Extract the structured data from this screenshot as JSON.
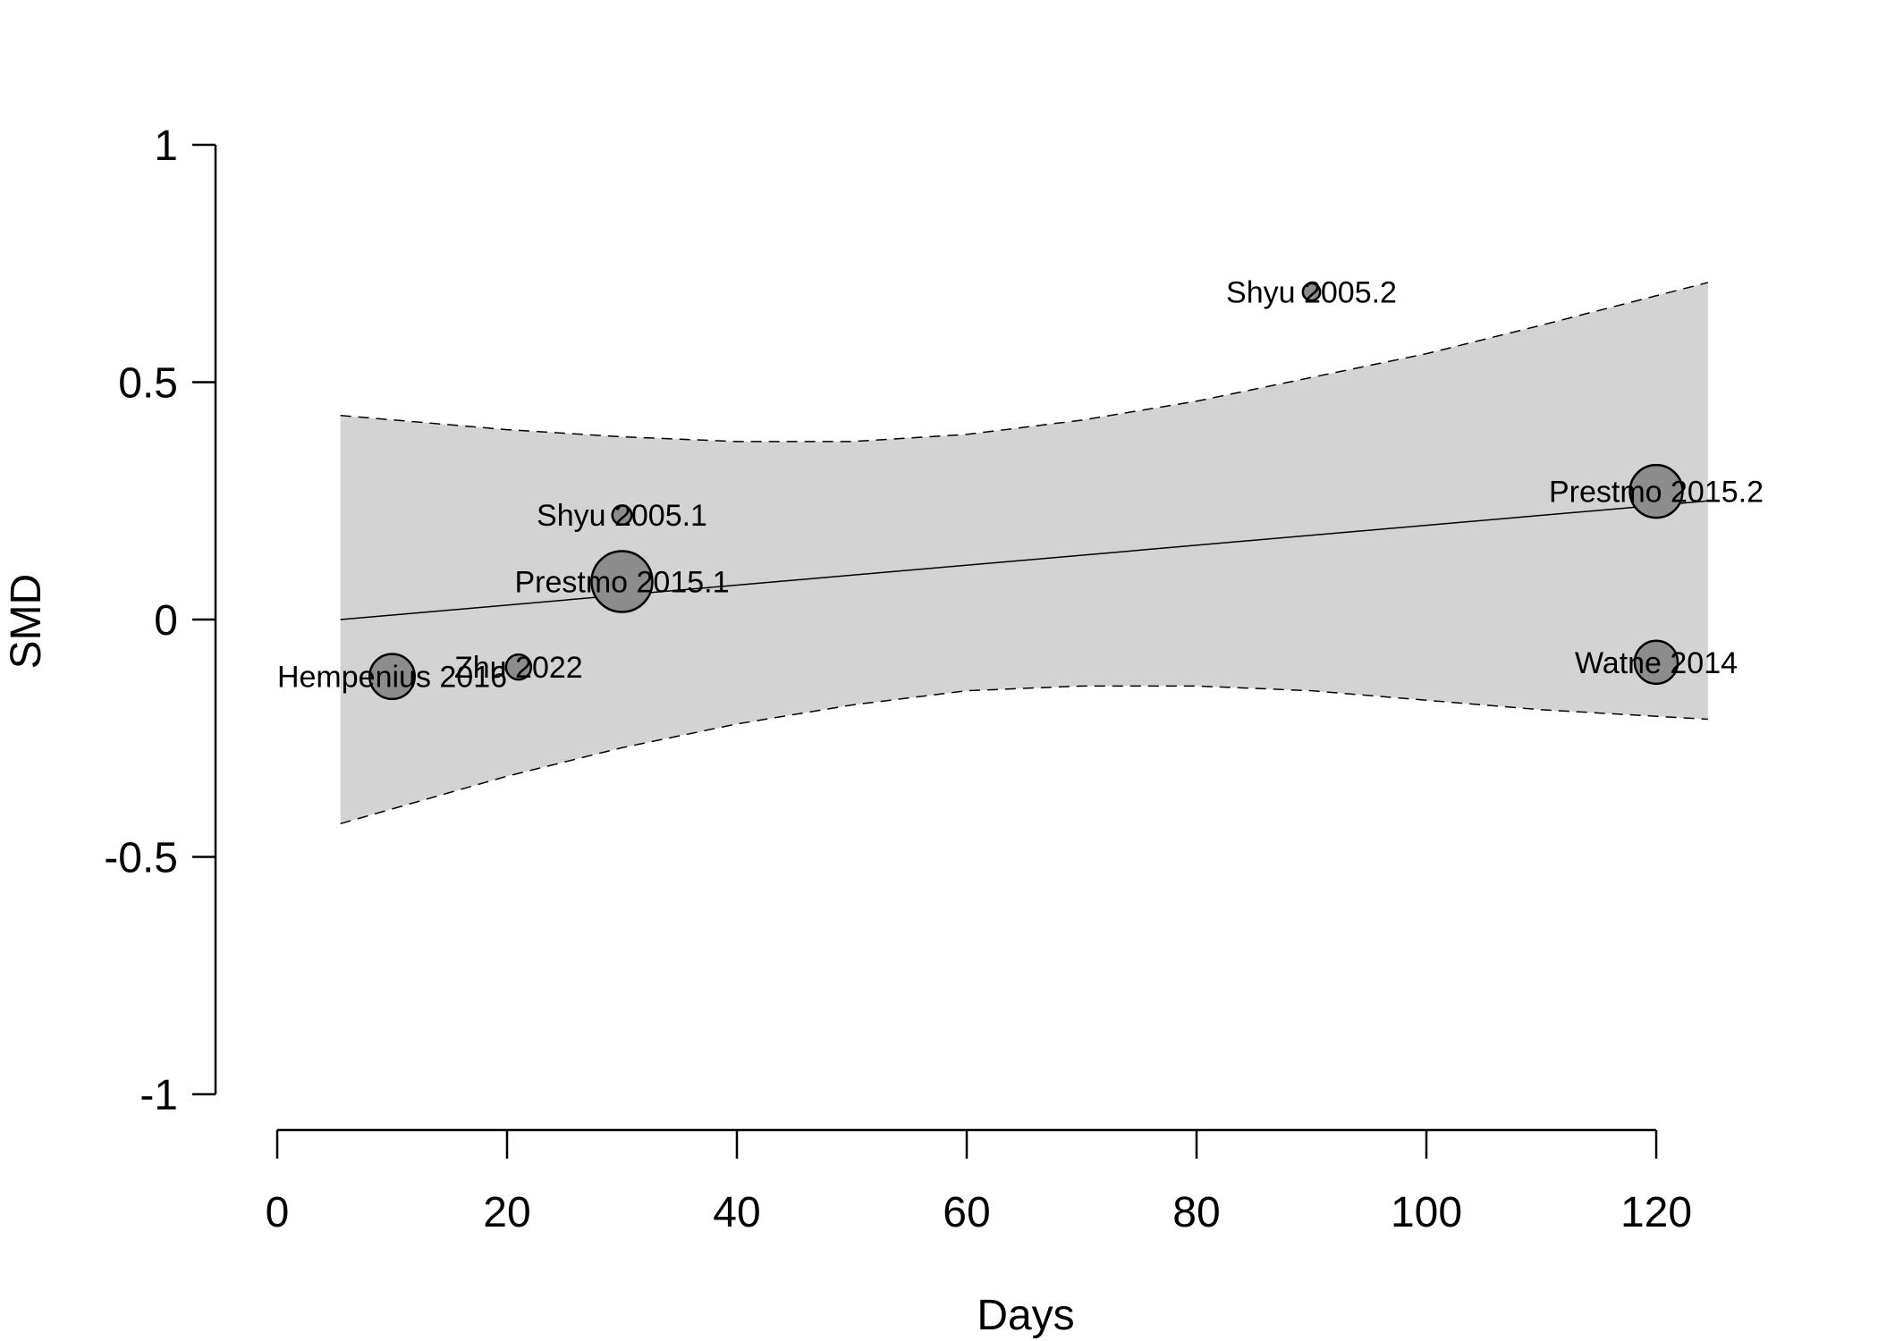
{
  "chart_data": {
    "type": "scatter",
    "title": "",
    "xlabel": "Days",
    "ylabel": "SMD",
    "xlim": [
      0,
      120
    ],
    "ylim": [
      -1,
      1
    ],
    "x_ticks": [
      0,
      20,
      40,
      60,
      80,
      100,
      120
    ],
    "x_tick_labels": [
      "0",
      "20",
      "40",
      "60",
      "80",
      "100",
      "120"
    ],
    "y_ticks": [
      -1,
      -0.5,
      0,
      0.5,
      1
    ],
    "y_tick_labels": [
      "-1",
      "-0.5",
      "0",
      "0.5",
      "1"
    ],
    "grid": false,
    "colors": {
      "band": "#d3d3d3",
      "point_fill": "#8c8c8c",
      "line": "#000000"
    },
    "points": [
      {
        "label": "Hempenius 2016",
        "x": 10,
        "y": -0.12,
        "weight": 0.55
      },
      {
        "label": "Zhu 2022",
        "x": 21,
        "y": -0.1,
        "weight": 0.17
      },
      {
        "label": "Shyu 2005.1",
        "x": 30,
        "y": 0.22,
        "weight": 0.1
      },
      {
        "label": "Prestmo 2015.1",
        "x": 30,
        "y": 0.08,
        "weight": 1.0
      },
      {
        "label": "Shyu 2005.2",
        "x": 90,
        "y": 0.69,
        "weight": 0.08
      },
      {
        "label": "Prestmo 2015.2",
        "x": 120,
        "y": 0.27,
        "weight": 0.75
      },
      {
        "label": "Watne 2014",
        "x": 120,
        "y": -0.09,
        "weight": 0.5
      }
    ],
    "regression": {
      "x": [
        5.5,
        124.5
      ],
      "y": [
        0.0,
        0.25
      ]
    },
    "confidence_band": {
      "x": [
        5.5,
        20,
        30,
        40,
        50,
        60,
        70,
        80,
        90,
        100,
        110,
        124.5
      ],
      "upper": [
        0.43,
        0.4,
        0.385,
        0.375,
        0.375,
        0.39,
        0.42,
        0.46,
        0.51,
        0.56,
        0.62,
        0.71
      ],
      "lower": [
        -0.43,
        -0.33,
        -0.27,
        -0.22,
        -0.18,
        -0.15,
        -0.14,
        -0.14,
        -0.15,
        -0.17,
        -0.19,
        -0.21
      ]
    }
  }
}
